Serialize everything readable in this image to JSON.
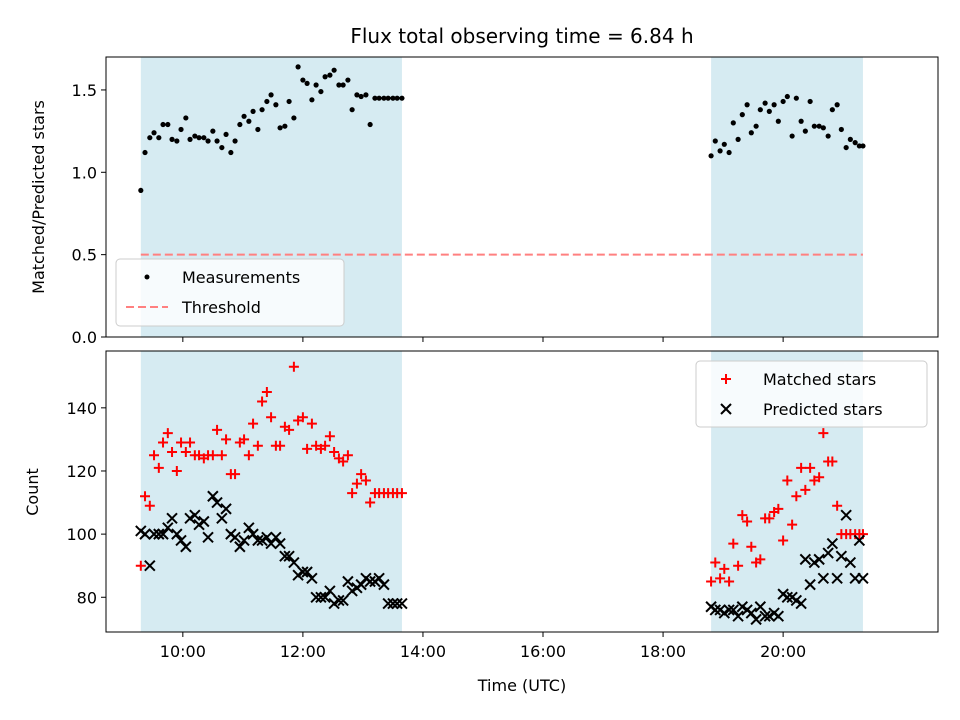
{
  "title": "Flux total observing time = 6.84 h",
  "chart_data": [
    {
      "type": "scatter",
      "ylabel": "Matched/Predicted stars",
      "ylim": [
        0,
        1.7
      ],
      "yticks": [
        "0.0",
        "0.5",
        "1.0",
        "1.5"
      ],
      "ytick_values": [
        0,
        0.5,
        1.0,
        1.5
      ],
      "xlim": [
        8.72,
        22.58
      ],
      "xticks": [
        "10:00",
        "12:00",
        "14:00",
        "16:00",
        "18:00",
        "20:00"
      ],
      "xtick_values": [
        10,
        12,
        14,
        16,
        18,
        20
      ],
      "xtick_labels_visible": false,
      "shaded_intervals": [
        [
          9.3,
          13.65
        ],
        [
          18.8,
          21.33
        ]
      ],
      "shade_color": "#add8e6",
      "legend": {
        "placement": "lower-left",
        "entries": [
          "Measurements",
          "Threshold"
        ]
      },
      "series": [
        {
          "name": "Measurements",
          "kind": "points",
          "color": "#000000",
          "x": [
            9.3,
            9.37,
            9.45,
            9.52,
            9.6,
            9.67,
            9.75,
            9.82,
            9.9,
            9.97,
            10.05,
            10.12,
            10.2,
            10.27,
            10.35,
            10.42,
            10.5,
            10.57,
            10.65,
            10.72,
            10.8,
            10.87,
            10.95,
            11.02,
            11.1,
            11.17,
            11.25,
            11.32,
            11.4,
            11.47,
            11.55,
            11.62,
            11.7,
            11.77,
            11.85,
            11.92,
            12.0,
            12.07,
            12.15,
            12.22,
            12.3,
            12.37,
            12.45,
            12.52,
            12.6,
            12.67,
            12.75,
            12.82,
            12.9,
            12.97,
            13.05,
            13.12,
            13.2,
            13.27,
            13.35,
            13.42,
            13.5,
            13.57,
            13.65,
            18.8,
            18.87,
            18.95,
            19.02,
            19.1,
            19.17,
            19.25,
            19.32,
            19.4,
            19.47,
            19.55,
            19.62,
            19.7,
            19.77,
            19.85,
            19.92,
            20.0,
            20.07,
            20.15,
            20.22,
            20.3,
            20.37,
            20.45,
            20.52,
            20.6,
            20.67,
            20.75,
            20.82,
            20.9,
            20.97,
            21.05,
            21.12,
            21.2,
            21.27,
            21.33
          ],
          "y": [
            0.89,
            1.12,
            1.21,
            1.24,
            1.21,
            1.29,
            1.29,
            1.2,
            1.19,
            1.26,
            1.33,
            1.2,
            1.22,
            1.21,
            1.21,
            1.19,
            1.25,
            1.19,
            1.15,
            1.23,
            1.12,
            1.19,
            1.29,
            1.34,
            1.31,
            1.37,
            1.26,
            1.38,
            1.43,
            1.47,
            1.41,
            1.27,
            1.28,
            1.43,
            1.33,
            1.64,
            1.56,
            1.54,
            1.44,
            1.53,
            1.49,
            1.58,
            1.59,
            1.62,
            1.53,
            1.53,
            1.56,
            1.38,
            1.47,
            1.46,
            1.47,
            1.29,
            1.45,
            1.45,
            1.45,
            1.45,
            1.45,
            1.45,
            1.45,
            1.1,
            1.19,
            1.13,
            1.17,
            1.12,
            1.3,
            1.2,
            1.35,
            1.41,
            1.24,
            1.28,
            1.38,
            1.42,
            1.37,
            1.41,
            1.31,
            1.43,
            1.46,
            1.22,
            1.45,
            1.31,
            1.25,
            1.43,
            1.28,
            1.28,
            1.27,
            1.22,
            1.38,
            1.41,
            1.26,
            1.15,
            1.2,
            1.18,
            1.16,
            1.16
          ]
        },
        {
          "name": "Threshold",
          "kind": "hline",
          "color": "#ff8080",
          "y": 0.5,
          "x_range": [
            9.3,
            21.33
          ]
        }
      ]
    },
    {
      "type": "scatter",
      "xlabel": "Time (UTC)",
      "ylabel": "Count",
      "ylim": [
        69,
        158
      ],
      "yticks": [
        "80",
        "100",
        "120",
        "140"
      ],
      "ytick_values": [
        80,
        100,
        120,
        140
      ],
      "xlim": [
        8.72,
        22.58
      ],
      "xticks": [
        "10:00",
        "12:00",
        "14:00",
        "16:00",
        "18:00",
        "20:00"
      ],
      "xtick_values": [
        10,
        12,
        14,
        16,
        18,
        20
      ],
      "shaded_intervals": [
        [
          9.3,
          13.65
        ],
        [
          18.8,
          21.33
        ]
      ],
      "shade_color": "#add8e6",
      "legend": {
        "placement": "upper-right",
        "entries": [
          "Matched stars",
          "Predicted stars"
        ]
      },
      "series": [
        {
          "name": "Matched stars",
          "marker": "plus",
          "color": "#ff0000",
          "x": [
            9.3,
            9.37,
            9.45,
            9.52,
            9.6,
            9.67,
            9.75,
            9.82,
            9.9,
            9.97,
            10.05,
            10.12,
            10.2,
            10.27,
            10.35,
            10.42,
            10.5,
            10.57,
            10.65,
            10.72,
            10.8,
            10.87,
            10.95,
            11.02,
            11.1,
            11.17,
            11.25,
            11.32,
            11.4,
            11.47,
            11.55,
            11.62,
            11.7,
            11.77,
            11.85,
            11.92,
            12.0,
            12.07,
            12.15,
            12.22,
            12.3,
            12.37,
            12.45,
            12.52,
            12.6,
            12.67,
            12.75,
            12.82,
            12.9,
            12.97,
            13.05,
            13.12,
            13.2,
            13.27,
            13.35,
            13.42,
            13.5,
            13.57,
            13.65,
            18.8,
            18.87,
            18.95,
            19.02,
            19.1,
            19.17,
            19.25,
            19.32,
            19.4,
            19.47,
            19.55,
            19.62,
            19.7,
            19.77,
            19.85,
            19.92,
            20.0,
            20.07,
            20.15,
            20.22,
            20.3,
            20.37,
            20.45,
            20.52,
            20.6,
            20.67,
            20.75,
            20.82,
            20.9,
            20.97,
            21.05,
            21.12,
            21.2,
            21.27,
            21.33
          ],
          "y": [
            90,
            112,
            109,
            125,
            121,
            129,
            132,
            126,
            120,
            129,
            126,
            129,
            125,
            125,
            124,
            125,
            125,
            133,
            125,
            130,
            119,
            119,
            129,
            130,
            125,
            135,
            128,
            142,
            145,
            137,
            128,
            128,
            134,
            133,
            153,
            136,
            137,
            127,
            135,
            128,
            127,
            128,
            131,
            126,
            124,
            123,
            125,
            113,
            116,
            119,
            117,
            110,
            113,
            113,
            113,
            113,
            113,
            113,
            113,
            85,
            91,
            86,
            89,
            85,
            97,
            90,
            106,
            104,
            96,
            91,
            92,
            105,
            105,
            107,
            108,
            98,
            117,
            103,
            112,
            121,
            114,
            121,
            117,
            118,
            132,
            123,
            123,
            109,
            100,
            100,
            100,
            100,
            100,
            100
          ]
        },
        {
          "name": "Predicted stars",
          "marker": "x",
          "color": "#000000",
          "x": [
            9.3,
            9.37,
            9.45,
            9.52,
            9.6,
            9.67,
            9.75,
            9.82,
            9.9,
            9.97,
            10.05,
            10.12,
            10.2,
            10.27,
            10.35,
            10.42,
            10.5,
            10.57,
            10.65,
            10.72,
            10.8,
            10.87,
            10.95,
            11.02,
            11.1,
            11.17,
            11.25,
            11.32,
            11.4,
            11.47,
            11.55,
            11.62,
            11.7,
            11.77,
            11.85,
            11.92,
            12.0,
            12.07,
            12.15,
            12.22,
            12.3,
            12.37,
            12.45,
            12.52,
            12.6,
            12.67,
            12.75,
            12.82,
            12.9,
            12.97,
            13.05,
            13.12,
            13.2,
            13.27,
            13.35,
            13.42,
            13.5,
            13.57,
            13.65,
            18.8,
            18.87,
            18.95,
            19.02,
            19.1,
            19.17,
            19.25,
            19.32,
            19.4,
            19.47,
            19.55,
            19.62,
            19.7,
            19.77,
            19.85,
            19.92,
            20.0,
            20.07,
            20.15,
            20.22,
            20.3,
            20.37,
            20.45,
            20.52,
            20.6,
            20.67,
            20.75,
            20.82,
            20.9,
            20.97,
            21.05,
            21.12,
            21.2,
            21.27,
            21.33
          ],
          "y": [
            101,
            100,
            90,
            100,
            100,
            100,
            102,
            105,
            100,
            98,
            96,
            105,
            106,
            103,
            104,
            99,
            112,
            110,
            105,
            108,
            100,
            99,
            96,
            98,
            102,
            100,
            98,
            98,
            99,
            97,
            99,
            97,
            93,
            93,
            91,
            87,
            88,
            88,
            86,
            80,
            80,
            80,
            82,
            78,
            79,
            79,
            85,
            82,
            83,
            84,
            86,
            85,
            85,
            86,
            84,
            78,
            78,
            78,
            78,
            77,
            76,
            76,
            75,
            76,
            76,
            74,
            77,
            76,
            75,
            73,
            77,
            74,
            74,
            75,
            74,
            81,
            80,
            80,
            79,
            78,
            92,
            84,
            91,
            92,
            86,
            94,
            97,
            86,
            93,
            106,
            91,
            86,
            98,
            86
          ]
        }
      ]
    }
  ]
}
